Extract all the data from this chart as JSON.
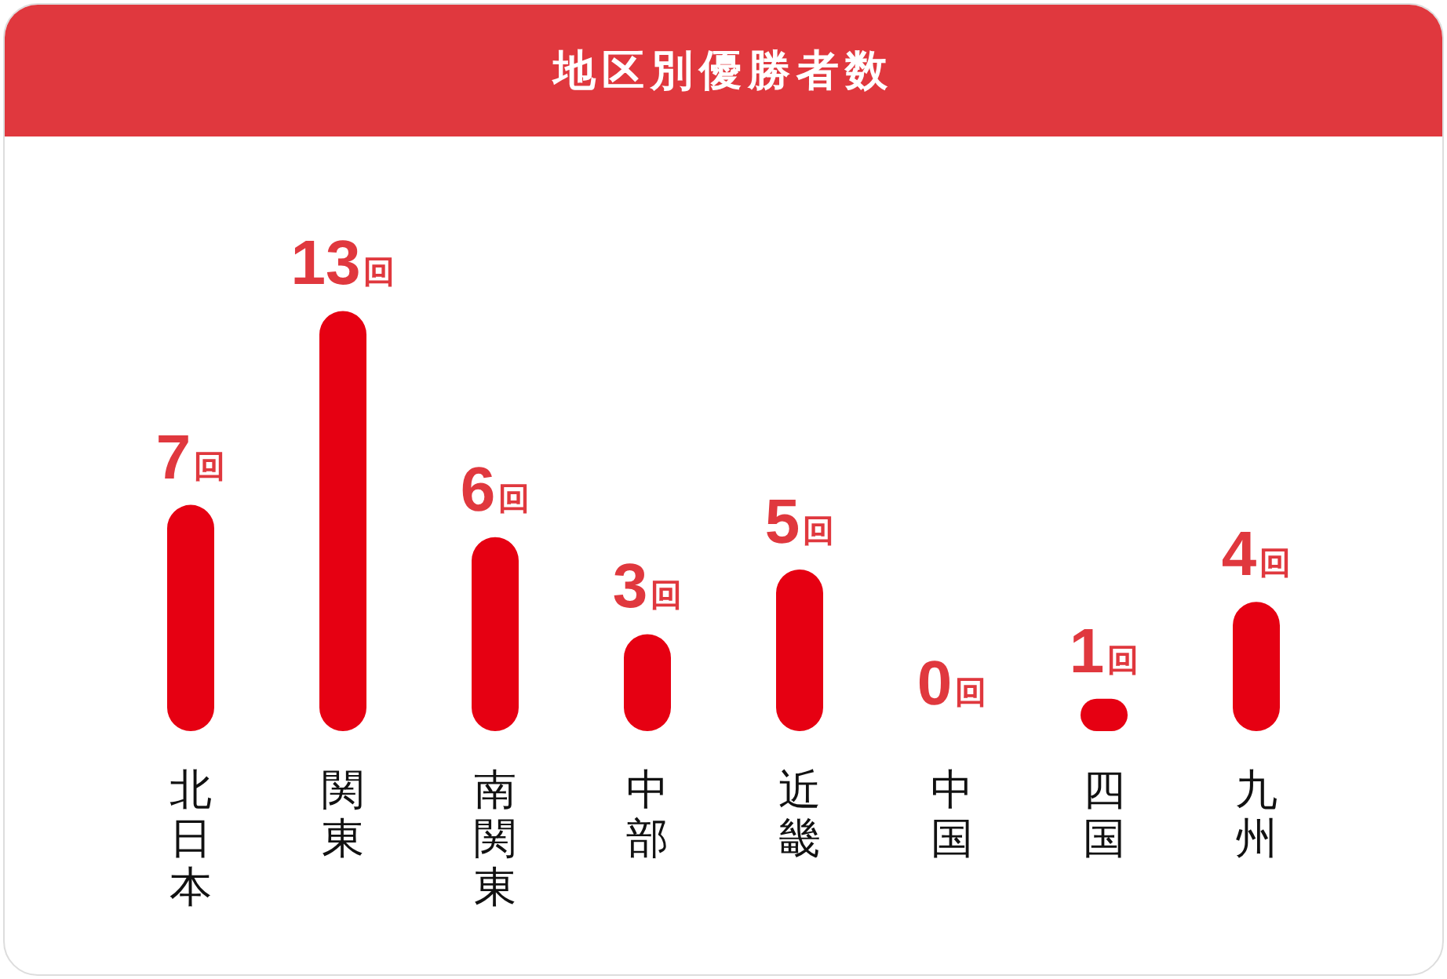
{
  "chart_data": {
    "type": "bar",
    "title": "地区別優勝者数",
    "categories": [
      "北日本",
      "関東",
      "南関東",
      "中部",
      "近畿",
      "中国",
      "四国",
      "九州"
    ],
    "values": [
      7,
      13,
      6,
      3,
      5,
      0,
      1,
      4
    ],
    "value_labels": [
      "7回",
      "13回",
      "6回",
      "3回",
      "5回",
      "0回",
      "1回",
      "4回"
    ],
    "color": "#e60012"
  }
}
